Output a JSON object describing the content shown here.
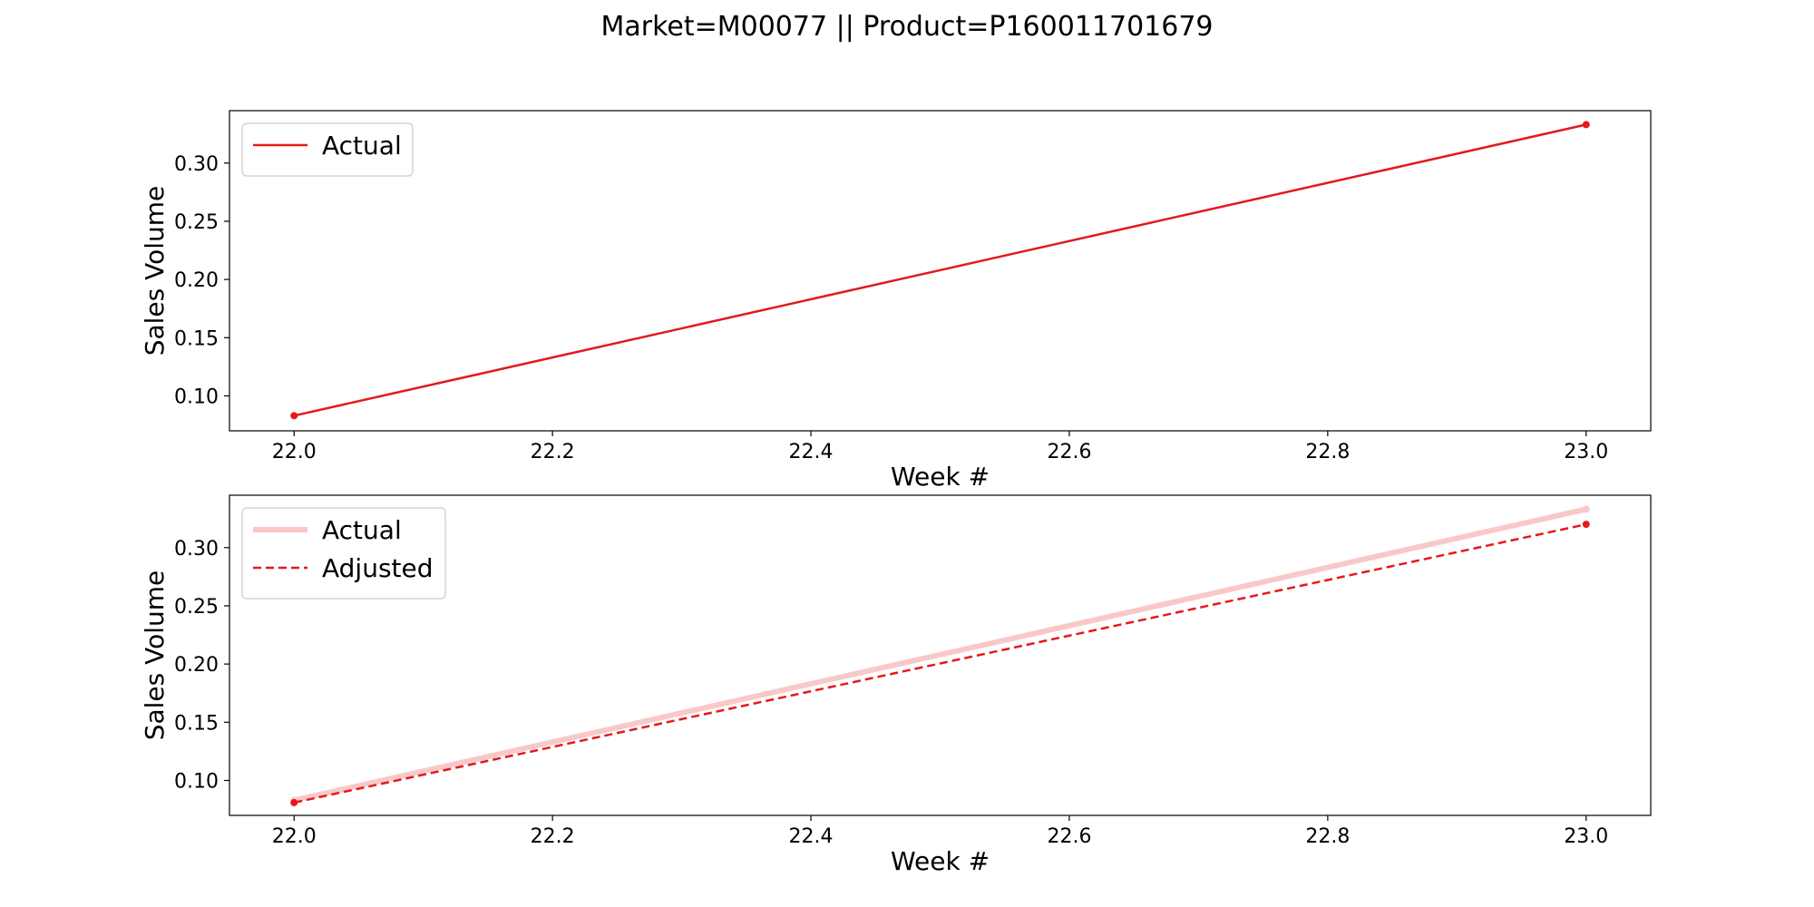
{
  "title": "Market=M00077 || Product=P160011701679",
  "colors": {
    "actual": "#e31a1c",
    "actual_faded": "#f9c8c8",
    "adjusted": "#e31a1c"
  },
  "chart_data": [
    {
      "type": "line",
      "xlabel": "Week #",
      "ylabel": "Sales Volume",
      "xlim": [
        21.95,
        23.05
      ],
      "ylim": [
        0.07,
        0.345
      ],
      "xticks": [
        22.0,
        22.2,
        22.4,
        22.6,
        22.8,
        23.0
      ],
      "xtick_labels": [
        "22.0",
        "22.2",
        "22.4",
        "22.6",
        "22.8",
        "23.0"
      ],
      "yticks": [
        0.1,
        0.15,
        0.2,
        0.25,
        0.3
      ],
      "ytick_labels": [
        "0.10",
        "0.15",
        "0.20",
        "0.25",
        "0.30"
      ],
      "legend": "upper-left",
      "series": [
        {
          "name": "Actual",
          "x": [
            22.0,
            23.0
          ],
          "y": [
            0.083,
            0.333
          ],
          "style": "solid",
          "color": "#e31a1c"
        }
      ]
    },
    {
      "type": "line",
      "xlabel": "Week #",
      "ylabel": "Sales Volume",
      "xlim": [
        21.95,
        23.05
      ],
      "ylim": [
        0.07,
        0.345
      ],
      "xticks": [
        22.0,
        22.2,
        22.4,
        22.6,
        22.8,
        23.0
      ],
      "xtick_labels": [
        "22.0",
        "22.2",
        "22.4",
        "22.6",
        "22.8",
        "23.0"
      ],
      "yticks": [
        0.1,
        0.15,
        0.2,
        0.25,
        0.3
      ],
      "ytick_labels": [
        "0.10",
        "0.15",
        "0.20",
        "0.25",
        "0.30"
      ],
      "legend": "upper-left",
      "series": [
        {
          "name": "Actual",
          "x": [
            22.0,
            23.0
          ],
          "y": [
            0.083,
            0.333
          ],
          "style": "thick-faded",
          "color": "#f9c8c8"
        },
        {
          "name": "Adjusted",
          "x": [
            22.0,
            23.0
          ],
          "y": [
            0.081,
            0.32
          ],
          "style": "dashed",
          "color": "#e31a1c"
        }
      ]
    }
  ]
}
